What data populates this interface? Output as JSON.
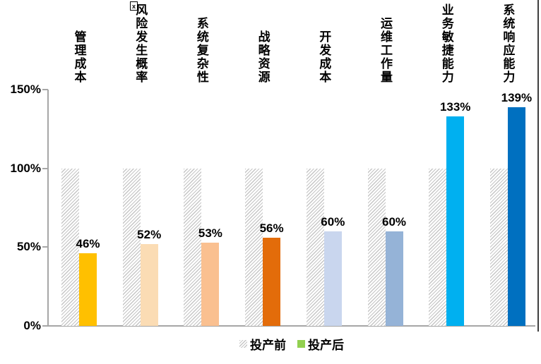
{
  "chart_data": {
    "type": "bar",
    "categories": [
      "管理成本",
      "风险发生概率",
      "系统复杂性",
      "战略资源",
      "开发成本",
      "运维工作量",
      "业务敏捷能力",
      "系统响应能力"
    ],
    "series": [
      {
        "name": "投产前",
        "values": [
          100,
          100,
          100,
          100,
          100,
          100,
          100,
          100
        ],
        "style": "hatched",
        "hatch_color": "#c6c6c6"
      },
      {
        "name": "投产后",
        "values": [
          46,
          52,
          53,
          56,
          60,
          60,
          133,
          139
        ],
        "colors": [
          "#FFC000",
          "#FBDCB4",
          "#FAC090",
          "#E36C0A",
          "#C9D6EE",
          "#95B3D7",
          "#00B0F0",
          "#0070C0"
        ],
        "legend_color": "#92D050"
      }
    ],
    "value_labels": [
      "46%",
      "52%",
      "53%",
      "56%",
      "60%",
      "60%",
      "133%",
      "139%"
    ],
    "yticks": [
      {
        "value": 0,
        "label": "0%"
      },
      {
        "value": 50,
        "label": "50%"
      },
      {
        "value": 100,
        "label": "100%"
      },
      {
        "value": 150,
        "label": "150%"
      }
    ],
    "ylim": [
      0,
      150
    ],
    "grid": false,
    "legend": {
      "position": "bottom",
      "entries": [
        "投产前",
        "投产后"
      ]
    },
    "axis_color": "#a6a6a6"
  },
  "artifacts": {
    "broken_image_glyph": "x",
    "trailing_dot": "."
  }
}
